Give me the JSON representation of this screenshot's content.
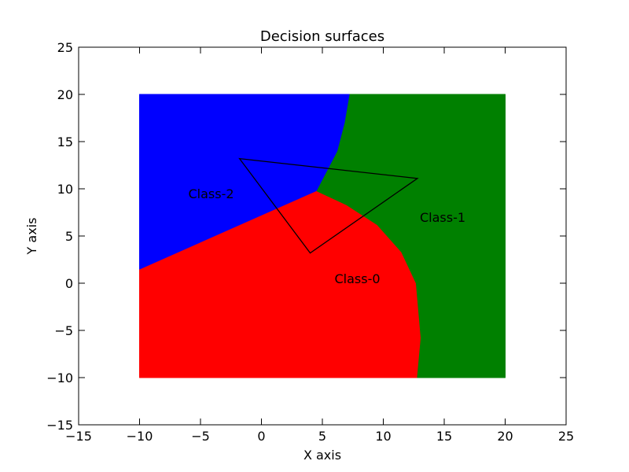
{
  "chart_data": {
    "type": "decision-surface",
    "title": "Decision surfaces",
    "xlabel": "X axis",
    "ylabel": "Y axis",
    "xlim": [
      -15,
      25
    ],
    "ylim": [
      -15,
      25
    ],
    "xticks": [
      -15,
      -10,
      -5,
      0,
      5,
      10,
      15,
      20,
      25
    ],
    "yticks": [
      -15,
      -10,
      -5,
      0,
      5,
      10,
      15,
      20,
      25
    ],
    "grid": false,
    "legend": "none",
    "colors": {
      "class0": "#ff0000",
      "class1": "#008000",
      "class2": "#0000ff",
      "triangle": "#000000"
    },
    "regions": [
      {
        "name": "Class-0",
        "color": "#ff0000",
        "polygon": [
          [
            -10,
            -10
          ],
          [
            -10,
            1.5
          ],
          [
            4.5,
            9.8
          ],
          [
            7,
            8.3
          ],
          [
            9.5,
            6.2
          ],
          [
            11.5,
            3.3
          ],
          [
            12.7,
            0
          ],
          [
            13.1,
            -5.8
          ],
          [
            12.8,
            -10
          ]
        ]
      },
      {
        "name": "Class-1",
        "color": "#008000",
        "polygon": [
          [
            7.2,
            20
          ],
          [
            20,
            20
          ],
          [
            20,
            -10
          ],
          [
            12.8,
            -10
          ],
          [
            13.1,
            -5.8
          ],
          [
            12.7,
            0
          ],
          [
            11.5,
            3.3
          ],
          [
            9.5,
            6.2
          ],
          [
            7,
            8.3
          ],
          [
            4.5,
            9.8
          ],
          [
            6.2,
            14
          ],
          [
            6.8,
            17
          ]
        ]
      },
      {
        "name": "Class-2",
        "color": "#0000ff",
        "polygon": [
          [
            -10,
            20
          ],
          [
            7.2,
            20
          ],
          [
            6.8,
            17
          ],
          [
            6.2,
            14
          ],
          [
            4.5,
            9.8
          ],
          [
            -10,
            1.5
          ]
        ]
      }
    ],
    "triangle": [
      [
        -1.8,
        13.2
      ],
      [
        12.8,
        11.1
      ],
      [
        4,
        3.2
      ]
    ],
    "annotations": [
      {
        "text": "Class-2",
        "x": -6,
        "y": 9
      },
      {
        "text": "Class-1",
        "x": 13,
        "y": 6.5
      },
      {
        "text": "Class-0",
        "x": 6,
        "y": 0
      }
    ]
  }
}
